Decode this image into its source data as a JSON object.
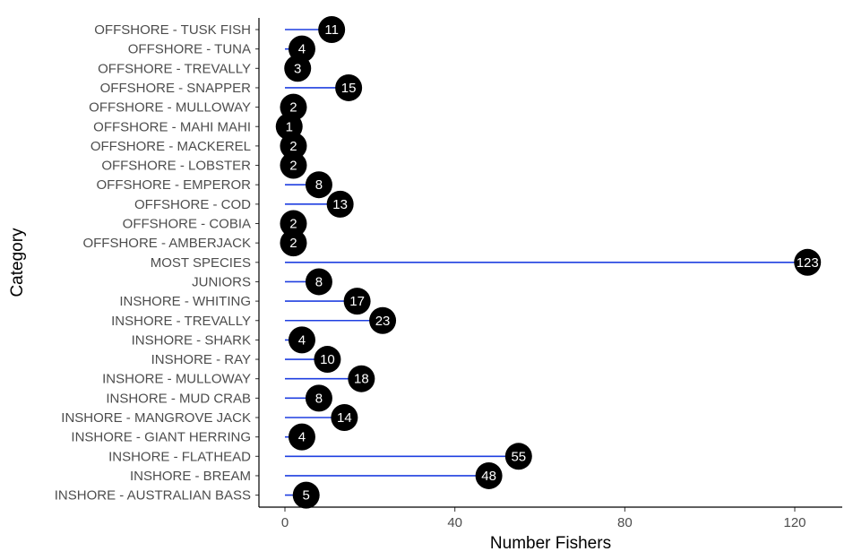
{
  "chart_data": {
    "type": "lollipop",
    "xlabel": "Number Fishers",
    "ylabel": "Category",
    "xlim": [
      -5,
      130
    ],
    "x_ticks": [
      0,
      40,
      80,
      120
    ],
    "x_tick_labels": [
      "0",
      "40",
      "80",
      "120"
    ],
    "grid": false,
    "colors": {
      "stem": "#1f3fe0",
      "point": "#000000",
      "label": "#ffffff",
      "axis": "#000000",
      "text": "#4d4d4d"
    },
    "categories": [
      "OFFSHORE - TUSK FISH",
      "OFFSHORE - TUNA",
      "OFFSHORE - TREVALLY",
      "OFFSHORE - SNAPPER",
      "OFFSHORE - MULLOWAY",
      "OFFSHORE - MAHI MAHI",
      "OFFSHORE - MACKEREL",
      "OFFSHORE - LOBSTER",
      "OFFSHORE - EMPEROR",
      "OFFSHORE - COD",
      "OFFSHORE - COBIA",
      "OFFSHORE - AMBERJACK",
      "MOST SPECIES",
      "JUNIORS",
      "INSHORE - WHITING",
      "INSHORE - TREVALLY",
      "INSHORE - SHARK",
      "INSHORE - RAY",
      "INSHORE - MULLOWAY",
      "INSHORE - MUD CRAB",
      "INSHORE - MANGROVE JACK",
      "INSHORE - GIANT HERRING",
      "INSHORE - FLATHEAD",
      "INSHORE - BREAM",
      "INSHORE - AUSTRALIAN BASS"
    ],
    "values": [
      11,
      4,
      3,
      15,
      2,
      1,
      2,
      2,
      8,
      13,
      2,
      2,
      123,
      8,
      17,
      23,
      4,
      10,
      18,
      8,
      14,
      4,
      55,
      48,
      5
    ]
  }
}
